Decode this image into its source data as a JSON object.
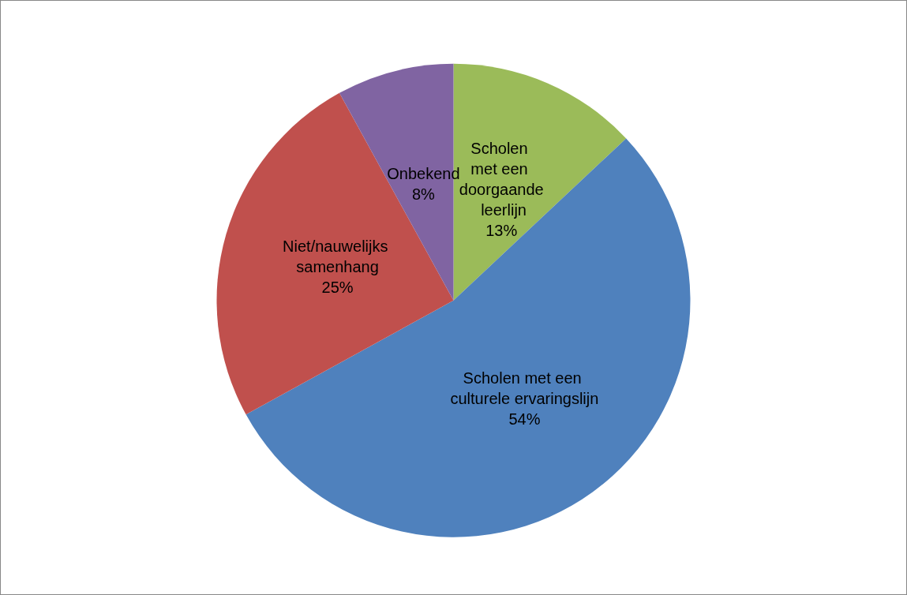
{
  "chart_data": {
    "type": "pie",
    "categories": [
      "Scholen met een doorgaande leerlijn",
      "Scholen met een culturele ervaringslijn",
      "Niet/nauwelijks samenhang",
      "Onbekend"
    ],
    "values": [
      13,
      54,
      25,
      8
    ],
    "value_labels": [
      "13%",
      "54%",
      "25%",
      "8%"
    ],
    "colors": [
      "#9bbb59",
      "#4f81bd",
      "#c0504d",
      "#8064a2"
    ],
    "legend": false
  }
}
